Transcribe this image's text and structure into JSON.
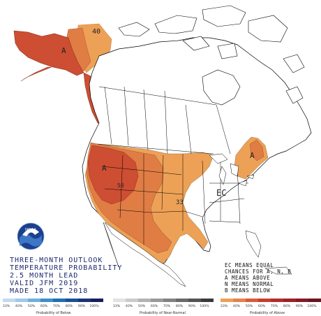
{
  "title_lines": [
    "THREE-MONTH OUTLOOK",
    "TEMPERATURE PROBABILITY",
    "2.5 MONTH LEAD",
    "VALID JFM 2019",
    "MADE 18 OCT 2018"
  ],
  "ec_note": [
    "EC MEANS EQUAL",
    "CHANCES FOR A, N, B",
    "A MEANS ABOVE",
    "N MEANS NORMAL",
    "B MEANS BELOW"
  ],
  "map_labels": {
    "ak_40": "40",
    "ak_a": "A",
    "west_a": "A",
    "west_50": "50",
    "central_33": "33",
    "east_ec": "EC",
    "east_a": "A"
  },
  "logo_text": "NOAA",
  "legend": {
    "below": {
      "ticks": [
        "33%",
        "40%",
        "50%",
        "60%",
        "70%",
        "80%",
        "90%",
        "100%"
      ],
      "caption": "Probability of Below",
      "colors": [
        "#c2d9ef",
        "#9ec9ea",
        "#6fb0dc",
        "#3c8fcc",
        "#1f6fb5",
        "#1a4f9a",
        "#1b3478",
        "#15205c"
      ]
    },
    "normal": {
      "ticks": [
        "33%",
        "40%",
        "50%",
        "60%",
        "70%",
        "80%",
        "90%",
        "100%"
      ],
      "caption": "Probability of Near-Normal",
      "colors": [
        "#e2e2e2",
        "#cbcbcb",
        "#b3b3b3",
        "#9a9a9a",
        "#828282",
        "#6a6a6a",
        "#535353",
        "#3a3a3a"
      ]
    },
    "above": {
      "ticks": [
        "33%",
        "40%",
        "50%",
        "60%",
        "70%",
        "80%",
        "90%",
        "100%"
      ],
      "caption": "Probability of Above",
      "colors": [
        "#eda156",
        "#e6814b",
        "#d9593a",
        "#c63e2e",
        "#b52a2a",
        "#9d2027",
        "#831a24",
        "#6a1420"
      ]
    }
  },
  "region_colors": {
    "lt40": "#eda156",
    "40to50": "#e07d44",
    "50to60": "#cd4e32"
  }
}
